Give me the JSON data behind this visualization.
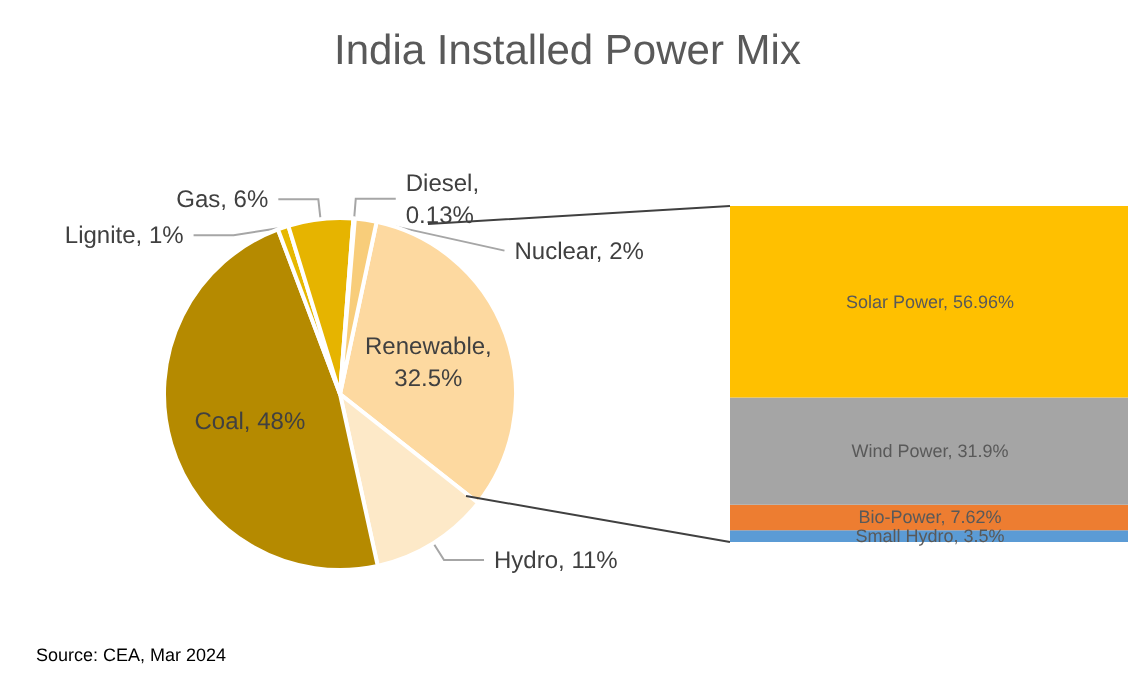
{
  "chart_data": [
    {
      "type": "pie",
      "title": "India Installed Power Mix",
      "annotations": [
        "Source: CEA, Mar 2024"
      ],
      "categories": [
        null,
        null,
        null,
        null,
        null,
        null,
        null
      ],
      "values": [
        32.5,
        11,
        48,
        1,
        6,
        0.13,
        2
      ],
      "colors": [
        "#fdd9a0",
        "#fde9c8",
        "#b58a00",
        "#e6b800",
        "#e6b400",
        "#f5c842",
        "#f8cd7a"
      ],
      "value_labels": [
        "Renewable,\n32.5%",
        "Hydro, 11%",
        "Coal, 48%",
        "Lignite, 1%",
        "Gas, 6%",
        "Diesel,\n0.13%",
        "Nuclear, 2%"
      ]
    },
    {
      "type": "bar",
      "stacked": true,
      "categories": [
        null
      ],
      "series": [
        {
          "color": "#5b9bd5",
          "values": [
            3.5
          ],
          "value_labels": [
            "Small Hydro, 3.5%"
          ]
        },
        {
          "color": "#ed7d31",
          "values": [
            7.62
          ],
          "value_labels": [
            "Bio-Power, 7.62%"
          ]
        },
        {
          "color": "#a5a5a5",
          "values": [
            31.9
          ],
          "value_labels": [
            "Wind Power, 31.9%"
          ]
        },
        {
          "color": "#ffc000",
          "values": [
            56.96
          ],
          "value_labels": [
            "Solar Power, 56.96%"
          ]
        }
      ]
    }
  ]
}
